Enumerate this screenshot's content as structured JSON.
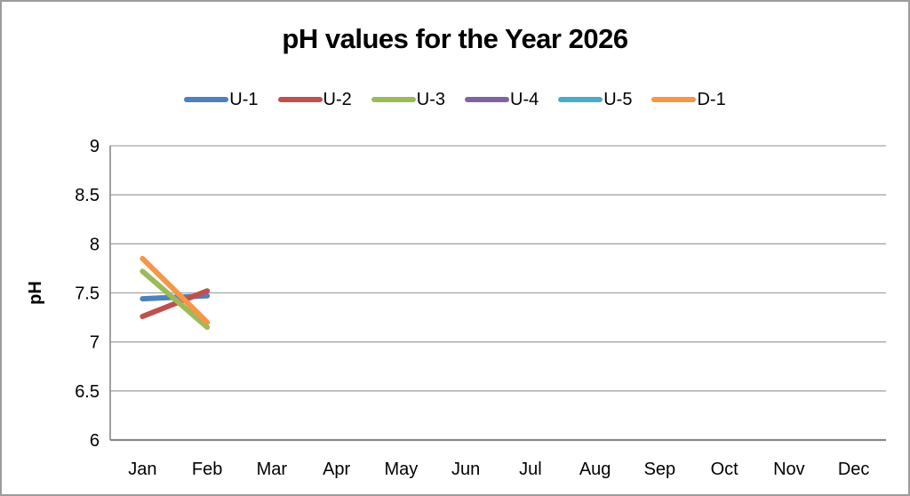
{
  "window": {
    "background_color": "#ffffff",
    "border_color": "#9c9c9c"
  },
  "chart_data": {
    "type": "line",
    "title": "pH values for the Year 2026",
    "xlabel": "",
    "ylabel": "pH",
    "x_categories": [
      "Jan",
      "Feb",
      "Mar",
      "Apr",
      "May",
      "Jun",
      "Jul",
      "Aug",
      "Sep",
      "Oct",
      "Nov",
      "Dec"
    ],
    "ylim": [
      6,
      9
    ],
    "ytick_step": 0.5,
    "yticks": [
      9,
      8.5,
      8,
      7.5,
      7,
      6.5,
      6
    ],
    "grid": true,
    "grid_color": "#a6a6a6",
    "axis_color": "#898989",
    "text_color": "#000000",
    "legend_position": "top",
    "series": [
      {
        "name": "U-1",
        "color": "#4F81BD",
        "values": [
          7.44,
          7.47,
          null,
          null,
          null,
          null,
          null,
          null,
          null,
          null,
          null,
          null
        ]
      },
      {
        "name": "U-2",
        "color": "#C0504D",
        "values": [
          7.26,
          7.52,
          null,
          null,
          null,
          null,
          null,
          null,
          null,
          null,
          null,
          null
        ]
      },
      {
        "name": "U-3",
        "color": "#9BBB59",
        "values": [
          7.72,
          7.15,
          null,
          null,
          null,
          null,
          null,
          null,
          null,
          null,
          null,
          null
        ]
      },
      {
        "name": "U-4",
        "color": "#8064A2",
        "values": [
          null,
          null,
          null,
          null,
          null,
          null,
          null,
          null,
          null,
          null,
          null,
          null
        ]
      },
      {
        "name": "U-5",
        "color": "#4BACC6",
        "values": [
          null,
          null,
          null,
          null,
          null,
          null,
          null,
          null,
          null,
          null,
          null,
          null
        ]
      },
      {
        "name": "D-1",
        "color": "#F79646",
        "values": [
          7.85,
          7.2,
          null,
          null,
          null,
          null,
          null,
          null,
          null,
          null,
          null,
          null
        ]
      }
    ]
  }
}
